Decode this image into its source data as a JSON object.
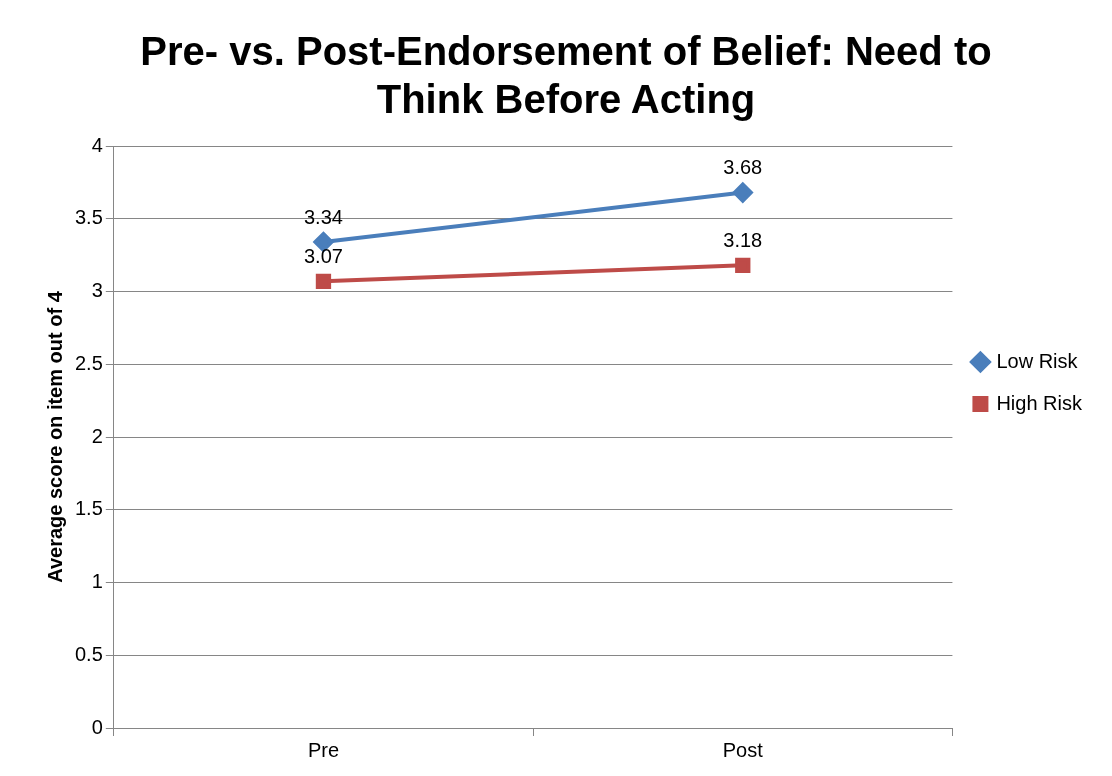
{
  "chart_data": {
    "type": "line",
    "title": "Pre- vs. Post-Endorsement of Belief: Need to Think Before Acting",
    "ylabel": "Average score on item out of 4",
    "categories": [
      "Pre",
      "Post"
    ],
    "series": [
      {
        "name": "Low Risk",
        "color": "#4a7ebb",
        "values": [
          3.34,
          3.68
        ],
        "marker": "diamond"
      },
      {
        "name": "High Risk",
        "color": "#be4b48",
        "values": [
          3.07,
          3.18
        ],
        "marker": "square"
      }
    ],
    "ylim": [
      0,
      4
    ],
    "yticks": [
      0,
      0.5,
      1,
      1.5,
      2,
      2.5,
      3,
      3.5,
      4
    ],
    "grid": "y",
    "legend": "right",
    "data_labels": true,
    "line_style": "solid"
  }
}
